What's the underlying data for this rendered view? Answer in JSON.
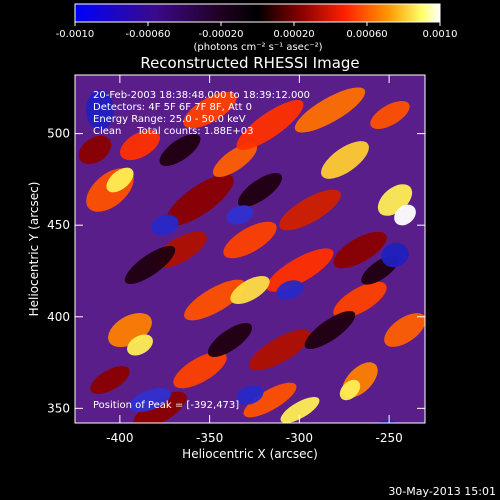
{
  "chart_data": {
    "type": "heatmap",
    "title": "Reconstructed RHESSI Image",
    "xlabel": "Heliocentric X (arcsec)",
    "ylabel": "Heliocentric Y (arcsec)",
    "xlim": [
      -425,
      -230
    ],
    "ylim": [
      342,
      532
    ],
    "x_ticks": [
      -400,
      -350,
      -300,
      -250
    ],
    "x_tick_labels": [
      "-400",
      "-350",
      "-300",
      "-250"
    ],
    "y_ticks": [
      350,
      400,
      450,
      500
    ],
    "y_tick_labels": [
      "350",
      "400",
      "450",
      "500"
    ],
    "colorbar": {
      "range": [
        -0.001,
        0.001
      ],
      "ticks": [
        -0.001,
        -0.0006,
        -0.0002,
        0.0002,
        0.0006,
        0.001
      ],
      "tick_labels": [
        "-0.0010",
        "-0.00060",
        "-0.00020",
        "0.00020",
        "0.00060",
        "0.0010"
      ],
      "label": "(photons cm⁻² s⁻¹ asec⁻²)",
      "colors": [
        "#0000ff",
        "#4b0082",
        "#800080",
        "#000000",
        "#8b0000",
        "#ff0000",
        "#ff8c00",
        "#ffff66",
        "#ffffff"
      ]
    },
    "annotations": [
      "20-Feb-2003 18:38:48.000 to 18:39:12.000",
      "Detectors: 4F 5F 6F 7F 8F, Att 0",
      "Energy Range: 25.0 - 50.0 keV",
      "Clean     Total counts: 1.88E+03"
    ],
    "peak_label": "Position of Peak = [-392,473]",
    "peak": [
      -392,
      473
    ]
  },
  "footer": {
    "timestamp": "30-May-2013 15:01"
  }
}
